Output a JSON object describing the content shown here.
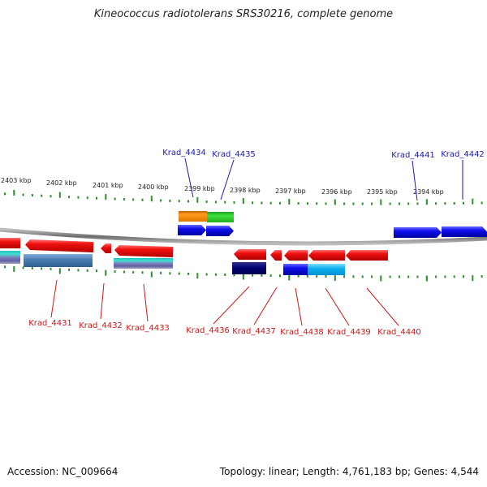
{
  "title": "Kineococcus radiotolerans SRS30216, complete genome",
  "footer": {
    "accession": "Accession: NC_009664",
    "stats": "Topology: linear; Length: 4,761,183 bp; Genes: 4,544"
  },
  "colors": {
    "forward_label": "#1a1aa8",
    "reverse_label": "#c81818",
    "tick": "#2e8b2e",
    "backbone": "#8a8a8a",
    "red_gene": "#e41010",
    "blue_gene": "#1010f0"
  },
  "scale_labels": [
    "2403 kbp",
    "2402 kbp",
    "2401 kbp",
    "2400 kbp",
    "2399 kbp",
    "2398 kbp",
    "2397 kbp",
    "2396 kbp",
    "2395 kbp",
    "2394 kbp"
  ],
  "forward_genes": [
    "Krad_4434",
    "Krad_4435",
    "Krad_4441",
    "Krad_4442"
  ],
  "reverse_genes": [
    "Krad_4431",
    "Krad_4432",
    "Krad_4433",
    "Krad_4436",
    "Krad_4437",
    "Krad_4438",
    "Krad_4439",
    "Krad_4440"
  ]
}
